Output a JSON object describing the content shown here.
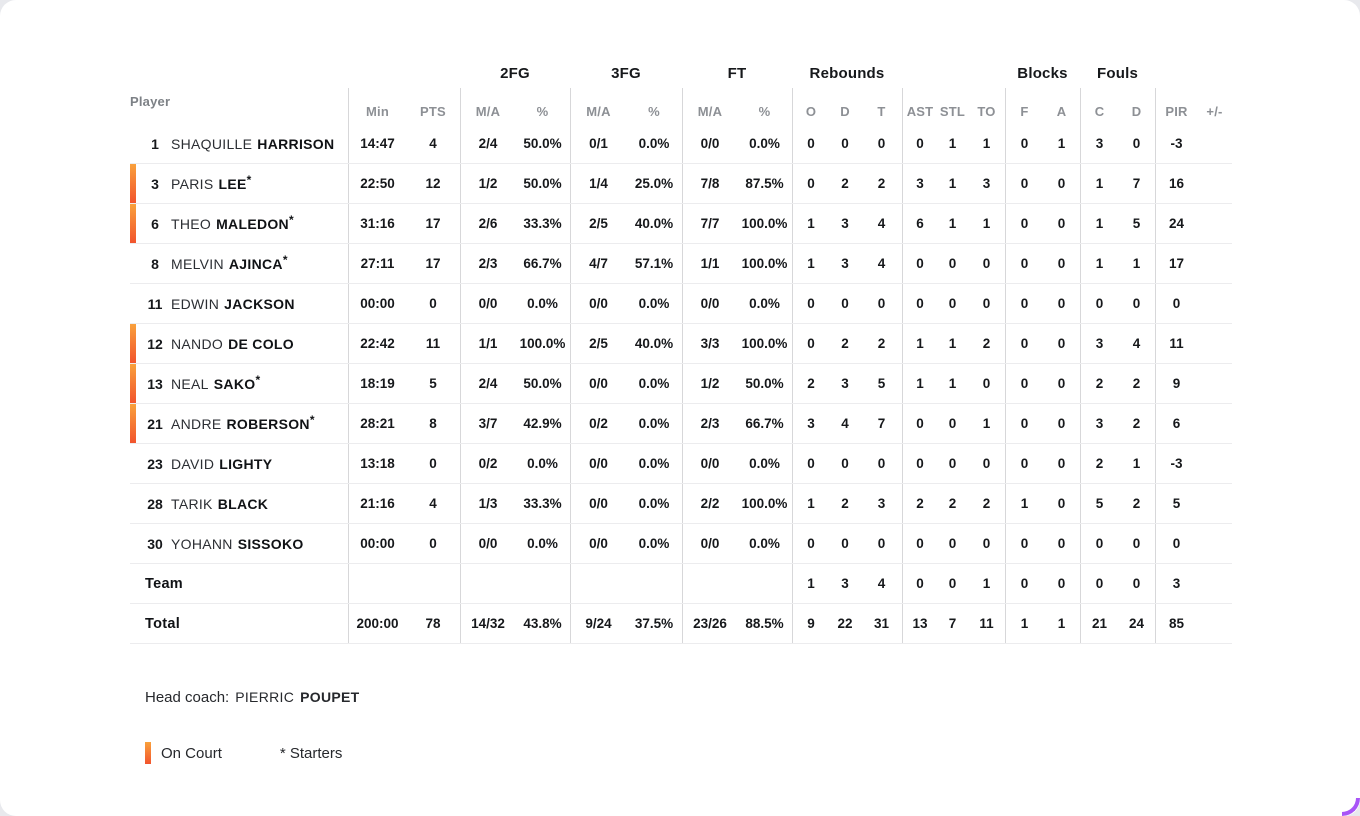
{
  "colors": {
    "on_court_top": "#f9a13c",
    "on_court_bottom": "#f2542d",
    "corner_accent": "#a855f7"
  },
  "table": {
    "player_header": "Player",
    "groups": [
      "2FG",
      "3FG",
      "FT",
      "Rebounds",
      "Blocks",
      "Fouls"
    ],
    "subheaders": [
      "Min",
      "PTS",
      "M/A",
      "%",
      "M/A",
      "%",
      "M/A",
      "%",
      "O",
      "D",
      "T",
      "AST",
      "STL",
      "TO",
      "F",
      "A",
      "C",
      "D",
      "PIR",
      "+/-"
    ],
    "rows": [
      {
        "num": "1",
        "first": "SHAQUILLE",
        "last": "HARRISON",
        "star": "",
        "on": false,
        "section": false,
        "min": "14:47",
        "pts": "4",
        "fg2": "2/4",
        "fg2p": "50.0%",
        "fg3": "0/1",
        "fg3p": "0.0%",
        "ft": "0/0",
        "ftp": "0.0%",
        "ro": "0",
        "rd": "0",
        "rt": "0",
        "ast": "0",
        "stl": "1",
        "to": "1",
        "bf": "0",
        "ba": "1",
        "fc": "3",
        "fd": "0",
        "pir": "-3",
        "pm": ""
      },
      {
        "num": "3",
        "first": "PARIS",
        "last": "LEE",
        "star": "*",
        "on": true,
        "section": false,
        "min": "22:50",
        "pts": "12",
        "fg2": "1/2",
        "fg2p": "50.0%",
        "fg3": "1/4",
        "fg3p": "25.0%",
        "ft": "7/8",
        "ftp": "87.5%",
        "ro": "0",
        "rd": "2",
        "rt": "2",
        "ast": "3",
        "stl": "1",
        "to": "3",
        "bf": "0",
        "ba": "0",
        "fc": "1",
        "fd": "7",
        "pir": "16",
        "pm": ""
      },
      {
        "num": "6",
        "first": "THEO",
        "last": "MALEDON",
        "star": "*",
        "on": true,
        "section": false,
        "min": "31:16",
        "pts": "17",
        "fg2": "2/6",
        "fg2p": "33.3%",
        "fg3": "2/5",
        "fg3p": "40.0%",
        "ft": "7/7",
        "ftp": "100.0%",
        "ro": "1",
        "rd": "3",
        "rt": "4",
        "ast": "6",
        "stl": "1",
        "to": "1",
        "bf": "0",
        "ba": "0",
        "fc": "1",
        "fd": "5",
        "pir": "24",
        "pm": ""
      },
      {
        "num": "8",
        "first": "MELVIN",
        "last": "AJINCA",
        "star": "*",
        "on": false,
        "section": false,
        "min": "27:11",
        "pts": "17",
        "fg2": "2/3",
        "fg2p": "66.7%",
        "fg3": "4/7",
        "fg3p": "57.1%",
        "ft": "1/1",
        "ftp": "100.0%",
        "ro": "1",
        "rd": "3",
        "rt": "4",
        "ast": "0",
        "stl": "0",
        "to": "0",
        "bf": "0",
        "ba": "0",
        "fc": "1",
        "fd": "1",
        "pir": "17",
        "pm": ""
      },
      {
        "num": "11",
        "first": "EDWIN",
        "last": "JACKSON",
        "star": "",
        "on": false,
        "section": false,
        "min": "00:00",
        "pts": "0",
        "fg2": "0/0",
        "fg2p": "0.0%",
        "fg3": "0/0",
        "fg3p": "0.0%",
        "ft": "0/0",
        "ftp": "0.0%",
        "ro": "0",
        "rd": "0",
        "rt": "0",
        "ast": "0",
        "stl": "0",
        "to": "0",
        "bf": "0",
        "ba": "0",
        "fc": "0",
        "fd": "0",
        "pir": "0",
        "pm": ""
      },
      {
        "num": "12",
        "first": "NANDO",
        "last": "DE COLO",
        "star": "",
        "on": true,
        "section": false,
        "min": "22:42",
        "pts": "11",
        "fg2": "1/1",
        "fg2p": "100.0%",
        "fg3": "2/5",
        "fg3p": "40.0%",
        "ft": "3/3",
        "ftp": "100.0%",
        "ro": "0",
        "rd": "2",
        "rt": "2",
        "ast": "1",
        "stl": "1",
        "to": "2",
        "bf": "0",
        "ba": "0",
        "fc": "3",
        "fd": "4",
        "pir": "11",
        "pm": ""
      },
      {
        "num": "13",
        "first": "NEAL",
        "last": "SAKO",
        "star": "*",
        "on": true,
        "section": false,
        "min": "18:19",
        "pts": "5",
        "fg2": "2/4",
        "fg2p": "50.0%",
        "fg3": "0/0",
        "fg3p": "0.0%",
        "ft": "1/2",
        "ftp": "50.0%",
        "ro": "2",
        "rd": "3",
        "rt": "5",
        "ast": "1",
        "stl": "1",
        "to": "0",
        "bf": "0",
        "ba": "0",
        "fc": "2",
        "fd": "2",
        "pir": "9",
        "pm": ""
      },
      {
        "num": "21",
        "first": "ANDRE",
        "last": "ROBERSON",
        "star": "*",
        "on": true,
        "section": false,
        "min": "28:21",
        "pts": "8",
        "fg2": "3/7",
        "fg2p": "42.9%",
        "fg3": "0/2",
        "fg3p": "0.0%",
        "ft": "2/3",
        "ftp": "66.7%",
        "ro": "3",
        "rd": "4",
        "rt": "7",
        "ast": "0",
        "stl": "0",
        "to": "1",
        "bf": "0",
        "ba": "0",
        "fc": "3",
        "fd": "2",
        "pir": "6",
        "pm": ""
      },
      {
        "num": "23",
        "first": "DAVID",
        "last": "LIGHTY",
        "star": "",
        "on": false,
        "section": false,
        "min": "13:18",
        "pts": "0",
        "fg2": "0/2",
        "fg2p": "0.0%",
        "fg3": "0/0",
        "fg3p": "0.0%",
        "ft": "0/0",
        "ftp": "0.0%",
        "ro": "0",
        "rd": "0",
        "rt": "0",
        "ast": "0",
        "stl": "0",
        "to": "0",
        "bf": "0",
        "ba": "0",
        "fc": "2",
        "fd": "1",
        "pir": "-3",
        "pm": ""
      },
      {
        "num": "28",
        "first": "TARIK",
        "last": "BLACK",
        "star": "",
        "on": false,
        "section": false,
        "min": "21:16",
        "pts": "4",
        "fg2": "1/3",
        "fg2p": "33.3%",
        "fg3": "0/0",
        "fg3p": "0.0%",
        "ft": "2/2",
        "ftp": "100.0%",
        "ro": "1",
        "rd": "2",
        "rt": "3",
        "ast": "2",
        "stl": "2",
        "to": "2",
        "bf": "1",
        "ba": "0",
        "fc": "5",
        "fd": "2",
        "pir": "5",
        "pm": ""
      },
      {
        "num": "30",
        "first": "YOHANN",
        "last": "SISSOKO",
        "star": "",
        "on": false,
        "section": false,
        "min": "00:00",
        "pts": "0",
        "fg2": "0/0",
        "fg2p": "0.0%",
        "fg3": "0/0",
        "fg3p": "0.0%",
        "ft": "0/0",
        "ftp": "0.0%",
        "ro": "0",
        "rd": "0",
        "rt": "0",
        "ast": "0",
        "stl": "0",
        "to": "0",
        "bf": "0",
        "ba": "0",
        "fc": "0",
        "fd": "0",
        "pir": "0",
        "pm": ""
      },
      {
        "num": "",
        "first": "",
        "last": "Team",
        "star": "",
        "on": false,
        "section": true,
        "min": "",
        "pts": "",
        "fg2": "",
        "fg2p": "",
        "fg3": "",
        "fg3p": "",
        "ft": "",
        "ftp": "",
        "ro": "1",
        "rd": "3",
        "rt": "4",
        "ast": "0",
        "stl": "0",
        "to": "1",
        "bf": "0",
        "ba": "0",
        "fc": "0",
        "fd": "0",
        "pir": "3",
        "pm": ""
      },
      {
        "num": "",
        "first": "",
        "last": "Total",
        "star": "",
        "on": false,
        "section": true,
        "min": "200:00",
        "pts": "78",
        "fg2": "14/32",
        "fg2p": "43.8%",
        "fg3": "9/24",
        "fg3p": "37.5%",
        "ft": "23/26",
        "ftp": "88.5%",
        "ro": "9",
        "rd": "22",
        "rt": "31",
        "ast": "13",
        "stl": "7",
        "to": "11",
        "bf": "1",
        "ba": "1",
        "fc": "21",
        "fd": "24",
        "pir": "85",
        "pm": ""
      }
    ]
  },
  "footer": {
    "head_coach_label": "Head coach:",
    "coach_first": "PIERRIC",
    "coach_last": "POUPET",
    "legend_on_court": "On Court",
    "legend_starters": "* Starters"
  }
}
